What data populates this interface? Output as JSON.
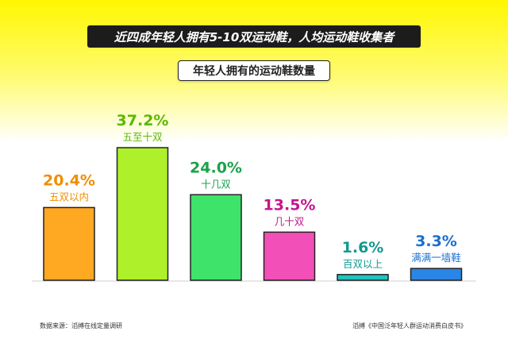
{
  "header": {
    "headline": "近四成年轻人拥有5-10双运动鞋，人均运动鞋收集者",
    "subtitle": "年轻人拥有的运动鞋数量"
  },
  "chart_data": {
    "type": "bar",
    "title": "年轻人拥有的运动鞋数量",
    "categories": [
      "五双以内",
      "五至十双",
      "十几双",
      "几十双",
      "百双以上",
      "满满一墙鞋"
    ],
    "values": [
      20.4,
      37.2,
      24.0,
      13.5,
      1.6,
      3.3
    ],
    "value_labels": [
      "20.4%",
      "37.2%",
      "24.0%",
      "13.5%",
      "1.6%",
      "3.3%"
    ],
    "unit": "%",
    "ylim": [
      0,
      40
    ],
    "grid": false,
    "colors": [
      "#ffa822",
      "#aef02a",
      "#3ee36a",
      "#f24fb8",
      "#1fc4bd",
      "#2a86e6"
    ],
    "label_colors": [
      "#ef8f00",
      "#5cb800",
      "#1aa24a",
      "#c3158c",
      "#12998f",
      "#1a6fd0"
    ]
  },
  "footer": {
    "source": "数据来源：滔搏在线定量调研",
    "report": "滔搏《中国泛年轻人群运动消费白皮书》"
  }
}
